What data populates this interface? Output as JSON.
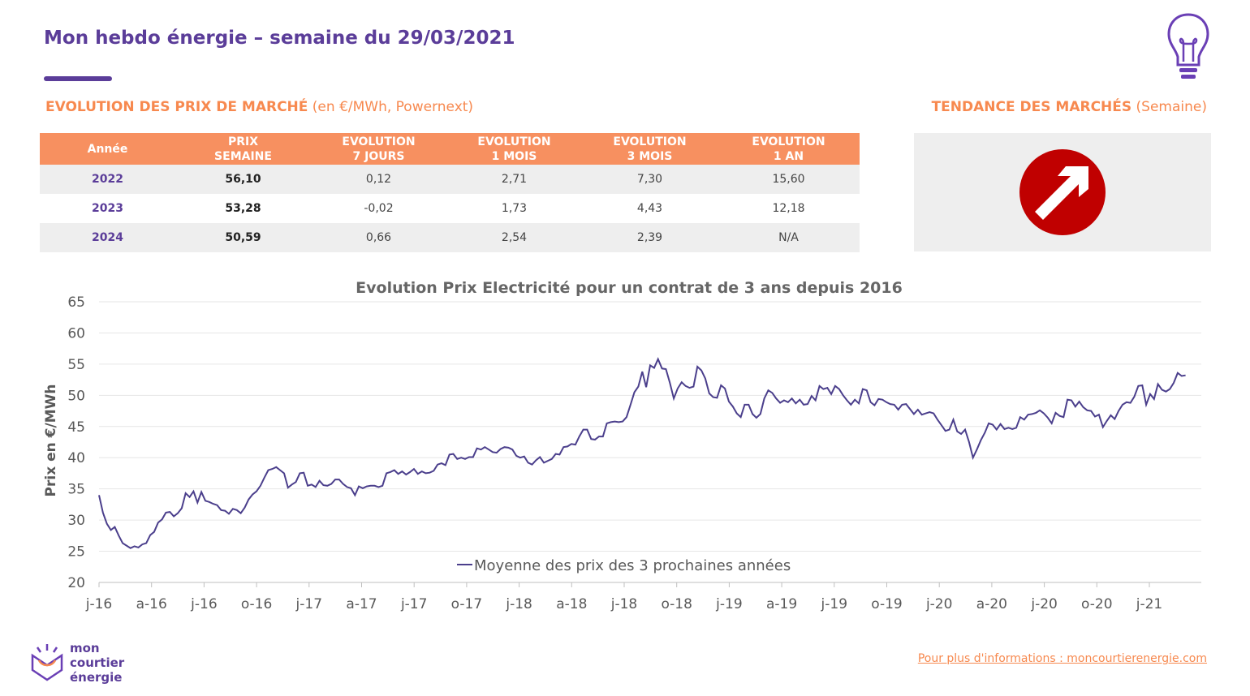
{
  "header": {
    "title": "Mon hebdo énergie – semaine du 29/03/2021",
    "section_prices_bold": "EVOLUTION DES PRIX DE MARCHÉ",
    "section_prices_note": " (en €/MWh, Powernext)",
    "section_trend_bold": "TENDANCE DES MARCHÉS",
    "section_trend_note": " (Semaine)"
  },
  "table": {
    "headers": [
      "Année",
      "PRIX\nSEMAINE",
      "EVOLUTION\n7 JOURS",
      "EVOLUTION\n1 MOIS",
      "EVOLUTION\n3 MOIS",
      "EVOLUTION\n1 AN"
    ],
    "rows": [
      [
        "2022",
        "56,10",
        "0,12",
        "2,71",
        "7,30",
        "15,60"
      ],
      [
        "2023",
        "53,28",
        "-0,02",
        "1,73",
        "4,43",
        "12,18"
      ],
      [
        "2024",
        "50,59",
        "0,66",
        "2,54",
        "2,39",
        "N/A"
      ]
    ]
  },
  "trend": {
    "direction": "up",
    "icon": "up-right-arrow-icon",
    "color": "#c00000"
  },
  "chart_data": {
    "type": "line",
    "title": "Evolution Prix Electricité pour un contrat de 3 ans depuis 2016",
    "xlabel": "",
    "ylabel": "Prix en €/MWh",
    "ylim": [
      20,
      65
    ],
    "yticks": [
      20,
      25,
      30,
      35,
      40,
      45,
      50,
      55,
      60,
      65
    ],
    "x_tick_labels": [
      "j-16",
      "a-16",
      "j-16",
      "o-16",
      "j-17",
      "a-17",
      "j-17",
      "o-17",
      "j-18",
      "a-18",
      "j-18",
      "o-18",
      "j-19",
      "a-19",
      "j-19",
      "o-19",
      "j-20",
      "a-20",
      "j-20",
      "o-20",
      "j-21"
    ],
    "grid": "horizontal",
    "legend_position": "bottom",
    "series_color": "#4b3f8c",
    "series": [
      {
        "name": "Moyenne des prix des 3 prochaines années",
        "points": [
          [
            0,
            34
          ],
          [
            0.2,
            31.2
          ],
          [
            0.4,
            29.4
          ],
          [
            0.6,
            28.4
          ],
          [
            0.8,
            28.9
          ],
          [
            1.0,
            27.5
          ],
          [
            1.2,
            26.3
          ],
          [
            1.4,
            25.9
          ],
          [
            1.6,
            25.5
          ],
          [
            1.8,
            25.8
          ],
          [
            2.0,
            25.6
          ],
          [
            2.2,
            26.1
          ],
          [
            2.4,
            26.3
          ],
          [
            2.6,
            27.6
          ],
          [
            2.8,
            28.1
          ],
          [
            3.0,
            29.6
          ],
          [
            3.2,
            30.1
          ],
          [
            3.4,
            31.2
          ],
          [
            3.6,
            31.3
          ],
          [
            3.8,
            30.6
          ],
          [
            4.0,
            31.1
          ],
          [
            4.2,
            31.9
          ],
          [
            4.4,
            34.3
          ],
          [
            4.6,
            33.7
          ],
          [
            4.8,
            34.6
          ],
          [
            5.0,
            32.8
          ],
          [
            5.2,
            34.5
          ],
          [
            5.4,
            33.1
          ],
          [
            5.6,
            32.9
          ],
          [
            5.8,
            32.6
          ],
          [
            6.0,
            32.4
          ],
          [
            6.2,
            31.6
          ],
          [
            6.4,
            31.5
          ],
          [
            6.6,
            31
          ],
          [
            6.8,
            31.8
          ],
          [
            7.0,
            31.6
          ],
          [
            7.2,
            31.1
          ],
          [
            7.4,
            32
          ],
          [
            7.6,
            33.3
          ],
          [
            7.8,
            34.1
          ],
          [
            8.0,
            34.6
          ],
          [
            8.2,
            35.5
          ],
          [
            8.4,
            36.8
          ],
          [
            8.6,
            38
          ],
          [
            8.8,
            38.2
          ],
          [
            9.0,
            38.5
          ],
          [
            9.2,
            38
          ],
          [
            9.4,
            37.5
          ],
          [
            9.6,
            35.2
          ],
          [
            9.8,
            35.7
          ],
          [
            10.0,
            36.1
          ],
          [
            10.2,
            37.5
          ],
          [
            10.4,
            37.6
          ],
          [
            10.6,
            35.5
          ],
          [
            10.8,
            35.7
          ],
          [
            11.0,
            35.3
          ],
          [
            11.2,
            36.3
          ],
          [
            11.4,
            35.6
          ],
          [
            11.6,
            35.5
          ],
          [
            11.8,
            35.8
          ],
          [
            12.0,
            36.5
          ],
          [
            12.2,
            36.5
          ],
          [
            12.4,
            35.8
          ],
          [
            12.6,
            35.3
          ],
          [
            12.8,
            35.1
          ],
          [
            13.0,
            34
          ],
          [
            13.2,
            35.4
          ],
          [
            13.4,
            35.1
          ],
          [
            13.6,
            35.4
          ],
          [
            13.8,
            35.5
          ],
          [
            14.0,
            35.5
          ],
          [
            14.2,
            35.3
          ],
          [
            14.4,
            35.5
          ],
          [
            14.6,
            37.5
          ],
          [
            14.8,
            37.7
          ],
          [
            15.0,
            38
          ],
          [
            15.2,
            37.4
          ],
          [
            15.4,
            37.8
          ],
          [
            15.6,
            37.3
          ],
          [
            15.8,
            37.7
          ],
          [
            16.0,
            38.2
          ],
          [
            16.2,
            37.4
          ],
          [
            16.4,
            37.8
          ],
          [
            16.6,
            37.5
          ],
          [
            16.8,
            37.6
          ],
          [
            17.0,
            37.9
          ],
          [
            17.2,
            38.9
          ],
          [
            17.4,
            39.1
          ],
          [
            17.6,
            38.8
          ],
          [
            17.8,
            40.5
          ],
          [
            18.0,
            40.6
          ],
          [
            18.2,
            39.8
          ],
          [
            18.4,
            40
          ],
          [
            18.6,
            39.8
          ],
          [
            18.8,
            40.1
          ],
          [
            19.0,
            40.1
          ],
          [
            19.2,
            41.5
          ],
          [
            19.4,
            41.3
          ],
          [
            19.6,
            41.7
          ],
          [
            19.8,
            41.3
          ],
          [
            20.0,
            40.9
          ],
          [
            20.2,
            40.8
          ],
          [
            20.4,
            41.4
          ],
          [
            20.6,
            41.7
          ],
          [
            20.8,
            41.6
          ],
          [
            21.0,
            41.3
          ],
          [
            21.2,
            40.3
          ],
          [
            21.4,
            40
          ],
          [
            21.6,
            40.2
          ],
          [
            21.8,
            39.2
          ],
          [
            22.0,
            38.9
          ],
          [
            22.2,
            39.6
          ],
          [
            22.4,
            40.1
          ],
          [
            22.6,
            39.2
          ],
          [
            22.8,
            39.5
          ],
          [
            23.0,
            39.8
          ],
          [
            23.2,
            40.6
          ],
          [
            23.4,
            40.5
          ],
          [
            23.6,
            41.7
          ],
          [
            23.8,
            41.8
          ],
          [
            24.0,
            42.2
          ],
          [
            24.2,
            42.1
          ],
          [
            24.4,
            43.4
          ],
          [
            24.6,
            44.5
          ],
          [
            24.8,
            44.5
          ],
          [
            25.0,
            43
          ],
          [
            25.2,
            42.9
          ],
          [
            25.4,
            43.4
          ],
          [
            25.6,
            43.4
          ],
          [
            25.8,
            45.5
          ],
          [
            26.0,
            45.7
          ],
          [
            26.2,
            45.8
          ],
          [
            26.4,
            45.7
          ],
          [
            26.6,
            45.8
          ],
          [
            26.8,
            46.5
          ],
          [
            27.0,
            48.5
          ],
          [
            27.2,
            50.5
          ],
          [
            27.4,
            51.4
          ],
          [
            27.6,
            53.8
          ],
          [
            27.8,
            51.3
          ],
          [
            28.0,
            54.8
          ],
          [
            28.2,
            54.4
          ],
          [
            28.4,
            55.8
          ],
          [
            28.6,
            54.3
          ],
          [
            28.8,
            54.2
          ],
          [
            29.0,
            52
          ],
          [
            29.2,
            49.5
          ],
          [
            29.4,
            51.1
          ],
          [
            29.6,
            52.1
          ],
          [
            29.8,
            51.5
          ],
          [
            30.0,
            51.2
          ],
          [
            30.2,
            51.4
          ],
          [
            30.4,
            54.6
          ],
          [
            30.6,
            54
          ],
          [
            30.8,
            52.7
          ],
          [
            31.0,
            50.3
          ],
          [
            31.2,
            49.7
          ],
          [
            31.4,
            49.6
          ],
          [
            31.6,
            51.6
          ],
          [
            31.8,
            51.1
          ],
          [
            32.0,
            49
          ],
          [
            32.2,
            48.2
          ],
          [
            32.4,
            47.1
          ],
          [
            32.6,
            46.5
          ],
          [
            32.8,
            48.5
          ],
          [
            33.0,
            48.5
          ],
          [
            33.2,
            47
          ],
          [
            33.4,
            46.4
          ],
          [
            33.6,
            47
          ],
          [
            33.8,
            49.5
          ],
          [
            34.0,
            50.8
          ],
          [
            34.2,
            50.4
          ],
          [
            34.4,
            49.5
          ],
          [
            34.6,
            48.8
          ],
          [
            34.8,
            49.2
          ],
          [
            35.0,
            48.9
          ],
          [
            35.2,
            49.5
          ],
          [
            35.4,
            48.7
          ],
          [
            35.6,
            49.3
          ],
          [
            35.8,
            48.5
          ],
          [
            36.0,
            48.6
          ],
          [
            36.2,
            49.9
          ],
          [
            36.4,
            49.2
          ],
          [
            36.6,
            51.5
          ],
          [
            36.8,
            51
          ],
          [
            37.0,
            51.2
          ],
          [
            37.2,
            50.2
          ],
          [
            37.4,
            51.5
          ],
          [
            37.6,
            51
          ],
          [
            37.8,
            50
          ],
          [
            38.0,
            49.2
          ],
          [
            38.2,
            48.5
          ],
          [
            38.4,
            49.3
          ],
          [
            38.6,
            48.7
          ],
          [
            38.8,
            51
          ],
          [
            39.0,
            50.8
          ],
          [
            39.2,
            48.9
          ],
          [
            39.4,
            48.4
          ],
          [
            39.6,
            49.4
          ],
          [
            39.8,
            49.3
          ],
          [
            40.0,
            48.9
          ],
          [
            40.2,
            48.6
          ],
          [
            40.4,
            48.5
          ],
          [
            40.6,
            47.7
          ],
          [
            40.8,
            48.5
          ],
          [
            41.0,
            48.6
          ],
          [
            41.2,
            47.8
          ],
          [
            41.4,
            47
          ],
          [
            41.6,
            47.7
          ],
          [
            41.8,
            46.9
          ],
          [
            42.0,
            47.1
          ],
          [
            42.2,
            47.3
          ],
          [
            42.4,
            47.1
          ],
          [
            42.6,
            46.1
          ],
          [
            42.8,
            45.2
          ],
          [
            43.0,
            44.3
          ],
          [
            43.2,
            44.5
          ],
          [
            43.4,
            46.1
          ],
          [
            43.6,
            44.2
          ],
          [
            43.8,
            43.8
          ],
          [
            44.0,
            44.5
          ],
          [
            44.2,
            42.5
          ],
          [
            44.4,
            40
          ],
          [
            44.6,
            41.3
          ],
          [
            44.8,
            42.8
          ],
          [
            45.0,
            44
          ],
          [
            45.2,
            45.5
          ],
          [
            45.4,
            45.3
          ],
          [
            45.6,
            44.5
          ],
          [
            45.8,
            45.4
          ],
          [
            46.0,
            44.6
          ],
          [
            46.2,
            44.8
          ],
          [
            46.4,
            44.6
          ],
          [
            46.6,
            44.8
          ],
          [
            46.8,
            46.5
          ],
          [
            47.0,
            46.1
          ],
          [
            47.2,
            46.9
          ],
          [
            47.4,
            47
          ],
          [
            47.6,
            47.2
          ],
          [
            47.8,
            47.6
          ],
          [
            48.0,
            47.1
          ],
          [
            48.2,
            46.4
          ],
          [
            48.4,
            45.5
          ],
          [
            48.6,
            47.2
          ],
          [
            48.8,
            46.7
          ],
          [
            49.0,
            46.5
          ],
          [
            49.2,
            49.3
          ],
          [
            49.4,
            49.2
          ],
          [
            49.6,
            48.2
          ],
          [
            49.8,
            49
          ],
          [
            50.0,
            48.1
          ],
          [
            50.2,
            47.6
          ],
          [
            50.4,
            47.5
          ],
          [
            50.6,
            46.6
          ],
          [
            50.8,
            46.9
          ],
          [
            51.0,
            44.9
          ],
          [
            51.2,
            45.9
          ],
          [
            51.4,
            46.8
          ],
          [
            51.6,
            46.2
          ],
          [
            51.8,
            47.5
          ],
          [
            52.0,
            48.5
          ],
          [
            52.2,
            48.9
          ],
          [
            52.4,
            48.8
          ],
          [
            52.6,
            49.8
          ],
          [
            52.8,
            51.5
          ],
          [
            53.0,
            51.6
          ],
          [
            53.2,
            48.5
          ],
          [
            53.4,
            50.2
          ],
          [
            53.6,
            49.4
          ],
          [
            53.8,
            51.8
          ],
          [
            54.0,
            50.9
          ],
          [
            54.2,
            50.6
          ],
          [
            54.4,
            51
          ],
          [
            54.6,
            52
          ],
          [
            54.8,
            53.6
          ],
          [
            55.0,
            53.1
          ],
          [
            55.2,
            53.2
          ]
        ]
      }
    ]
  },
  "footer": {
    "link_text": "Pour plus d'informations : moncourtierenergie.com",
    "logo_line1": "mon",
    "logo_line2": "courtier",
    "logo_line3": "énergie"
  }
}
